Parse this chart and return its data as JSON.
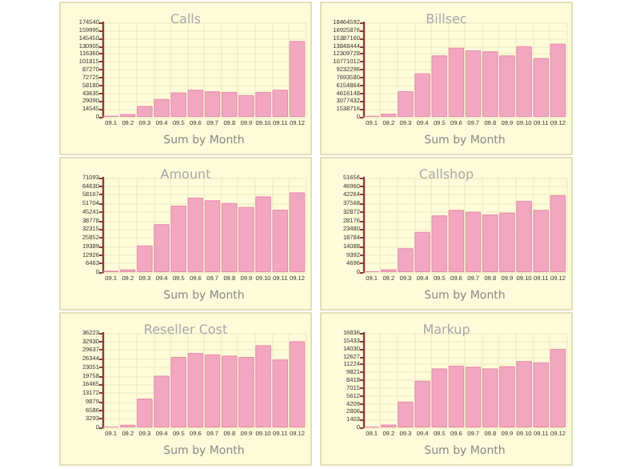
{
  "chart_data": [
    {
      "type": "bar",
      "title": "Calls",
      "xlabel": "Sum by Month",
      "categories": [
        "09.1",
        "09.2",
        "09.3",
        "09.4",
        "09.5",
        "09.6",
        "09.7",
        "09.8",
        "09.9",
        "09.10",
        "09.11",
        "09.12"
      ],
      "values": [
        2000,
        5000,
        20000,
        33000,
        45000,
        50000,
        47000,
        46000,
        40000,
        46000,
        50000,
        140000
      ],
      "color": "#f2a7c1",
      "ylim": [
        0,
        174540
      ],
      "yticks": [
        0,
        14545,
        29090,
        43635,
        58180,
        72725,
        87270,
        101815,
        116360,
        130905,
        145450,
        159995,
        174540
      ],
      "grid": true
    },
    {
      "type": "bar",
      "title": "Billsec",
      "xlabel": "Sum by Month",
      "categories": [
        "09.1",
        "09.2",
        "09.3",
        "09.4",
        "09.5",
        "09.6",
        "09.7",
        "09.8",
        "09.9",
        "09.10",
        "09.11",
        "09.12"
      ],
      "values": [
        200000,
        600000,
        5000000,
        8500000,
        12000000,
        13500000,
        13000000,
        12800000,
        12000000,
        13800000,
        11500000,
        14300000
      ],
      "color": "#f2a7c1",
      "ylim": [
        0,
        18464592
      ],
      "yticks": [
        0,
        1538716,
        3077432,
        4616148,
        6154864,
        7693580,
        9232296,
        10771012,
        12309728,
        13848444,
        15387160,
        16925876,
        18464592
      ],
      "grid": true
    },
    {
      "type": "bar",
      "title": "Amount",
      "xlabel": "Sum by Month",
      "categories": [
        "09.1",
        "09.2",
        "09.3",
        "09.4",
        "09.5",
        "09.6",
        "09.7",
        "09.8",
        "09.9",
        "09.10",
        "09.11",
        "09.12"
      ],
      "values": [
        1000,
        2000,
        20000,
        36000,
        50000,
        56000,
        54000,
        52000,
        49000,
        57000,
        47000,
        60000
      ],
      "color": "#f2a7c1",
      "ylim": [
        0,
        71093
      ],
      "yticks": [
        0,
        6463,
        12926,
        19389,
        25852,
        32315,
        38778,
        45241,
        51704,
        58167,
        64630,
        71093
      ],
      "grid": true
    },
    {
      "type": "bar",
      "title": "Callshop",
      "xlabel": "Sum by Month",
      "categories": [
        "09.1",
        "09.2",
        "09.3",
        "09.4",
        "09.5",
        "09.6",
        "09.7",
        "09.8",
        "09.9",
        "09.10",
        "09.11",
        "09.12"
      ],
      "values": [
        500,
        1500,
        13000,
        22000,
        31000,
        34000,
        33000,
        31500,
        32500,
        39000,
        34000,
        42000
      ],
      "color": "#f2a7c1",
      "ylim": [
        0,
        51656
      ],
      "yticks": [
        0,
        4696,
        9392,
        14088,
        18784,
        23480,
        28176,
        32872,
        37568,
        42264,
        46960,
        51656
      ],
      "grid": true
    },
    {
      "type": "bar",
      "title": "Reseller Cost",
      "xlabel": "Sum by Month",
      "categories": [
        "09.1",
        "09.2",
        "09.3",
        "09.4",
        "09.5",
        "09.6",
        "09.7",
        "09.8",
        "09.9",
        "09.10",
        "09.11",
        "09.12"
      ],
      "values": [
        300,
        1000,
        11000,
        19800,
        27000,
        28500,
        28000,
        27500,
        27000,
        31500,
        26000,
        33000
      ],
      "color": "#f2a7c1",
      "ylim": [
        0,
        36223
      ],
      "yticks": [
        0,
        3293,
        6586,
        9879,
        13172,
        16465,
        19758,
        23051,
        26344,
        29637,
        32930,
        36223
      ],
      "grid": true
    },
    {
      "type": "bar",
      "title": "Markup",
      "xlabel": "Sum by Month",
      "categories": [
        "09.1",
        "09.2",
        "09.3",
        "09.4",
        "09.5",
        "09.6",
        "09.7",
        "09.8",
        "09.9",
        "09.10",
        "09.11",
        "09.12"
      ],
      "values": [
        100,
        500,
        4600,
        8300,
        10500,
        11000,
        10800,
        10500,
        10900,
        11800,
        11600,
        14000
      ],
      "color": "#f2a7c1",
      "ylim": [
        0,
        16836
      ],
      "yticks": [
        0,
        1403,
        2806,
        4209,
        5612,
        7015,
        8418,
        9821,
        11224,
        12627,
        14030,
        15433,
        16836
      ],
      "grid": true
    }
  ]
}
